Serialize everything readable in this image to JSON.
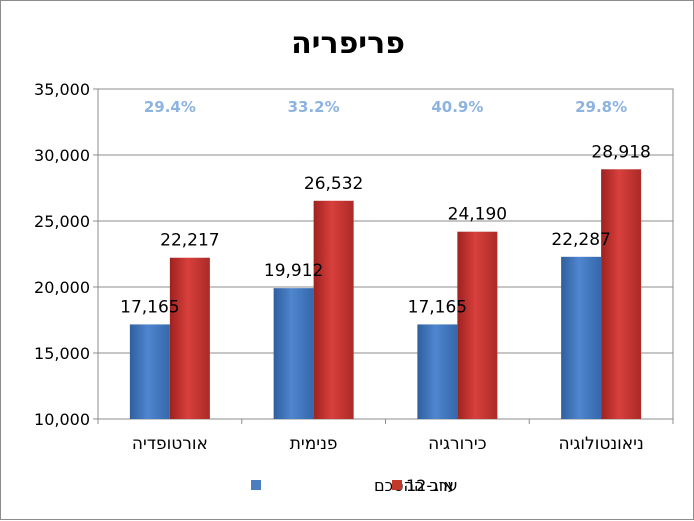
{
  "chart_data": {
    "type": "bar",
    "title": "פריפריה",
    "categories": [
      "אורטופדיה",
      "פנימית",
      "כירורגיה",
      "ניאונטולוגיה"
    ],
    "series": [
      {
        "name": "ערב ההסכם",
        "values": [
          17165,
          19912,
          17165,
          22287
        ],
        "labels": [
          "17,165",
          "19,912",
          "17,165",
          "22,287"
        ],
        "color": "#4a7ebf"
      },
      {
        "name": "אוג-12",
        "values": [
          22217,
          26532,
          24190,
          28918
        ],
        "labels": [
          "22,217",
          "26,532",
          "24,190",
          "28,918"
        ],
        "color": "#c0392b"
      }
    ],
    "annotations": [
      "29.4%",
      "33.2%",
      "40.9%",
      "29.8%"
    ],
    "ylim": [
      10000,
      35000
    ],
    "yticks": [
      10000,
      15000,
      20000,
      25000,
      30000,
      35000
    ],
    "ytick_labels": [
      "10,000",
      "15,000",
      "20,000",
      "25,000",
      "30,000",
      "35,000"
    ],
    "grid": true,
    "legend_position": "bottom",
    "annotation_color": "#8db3e2"
  }
}
